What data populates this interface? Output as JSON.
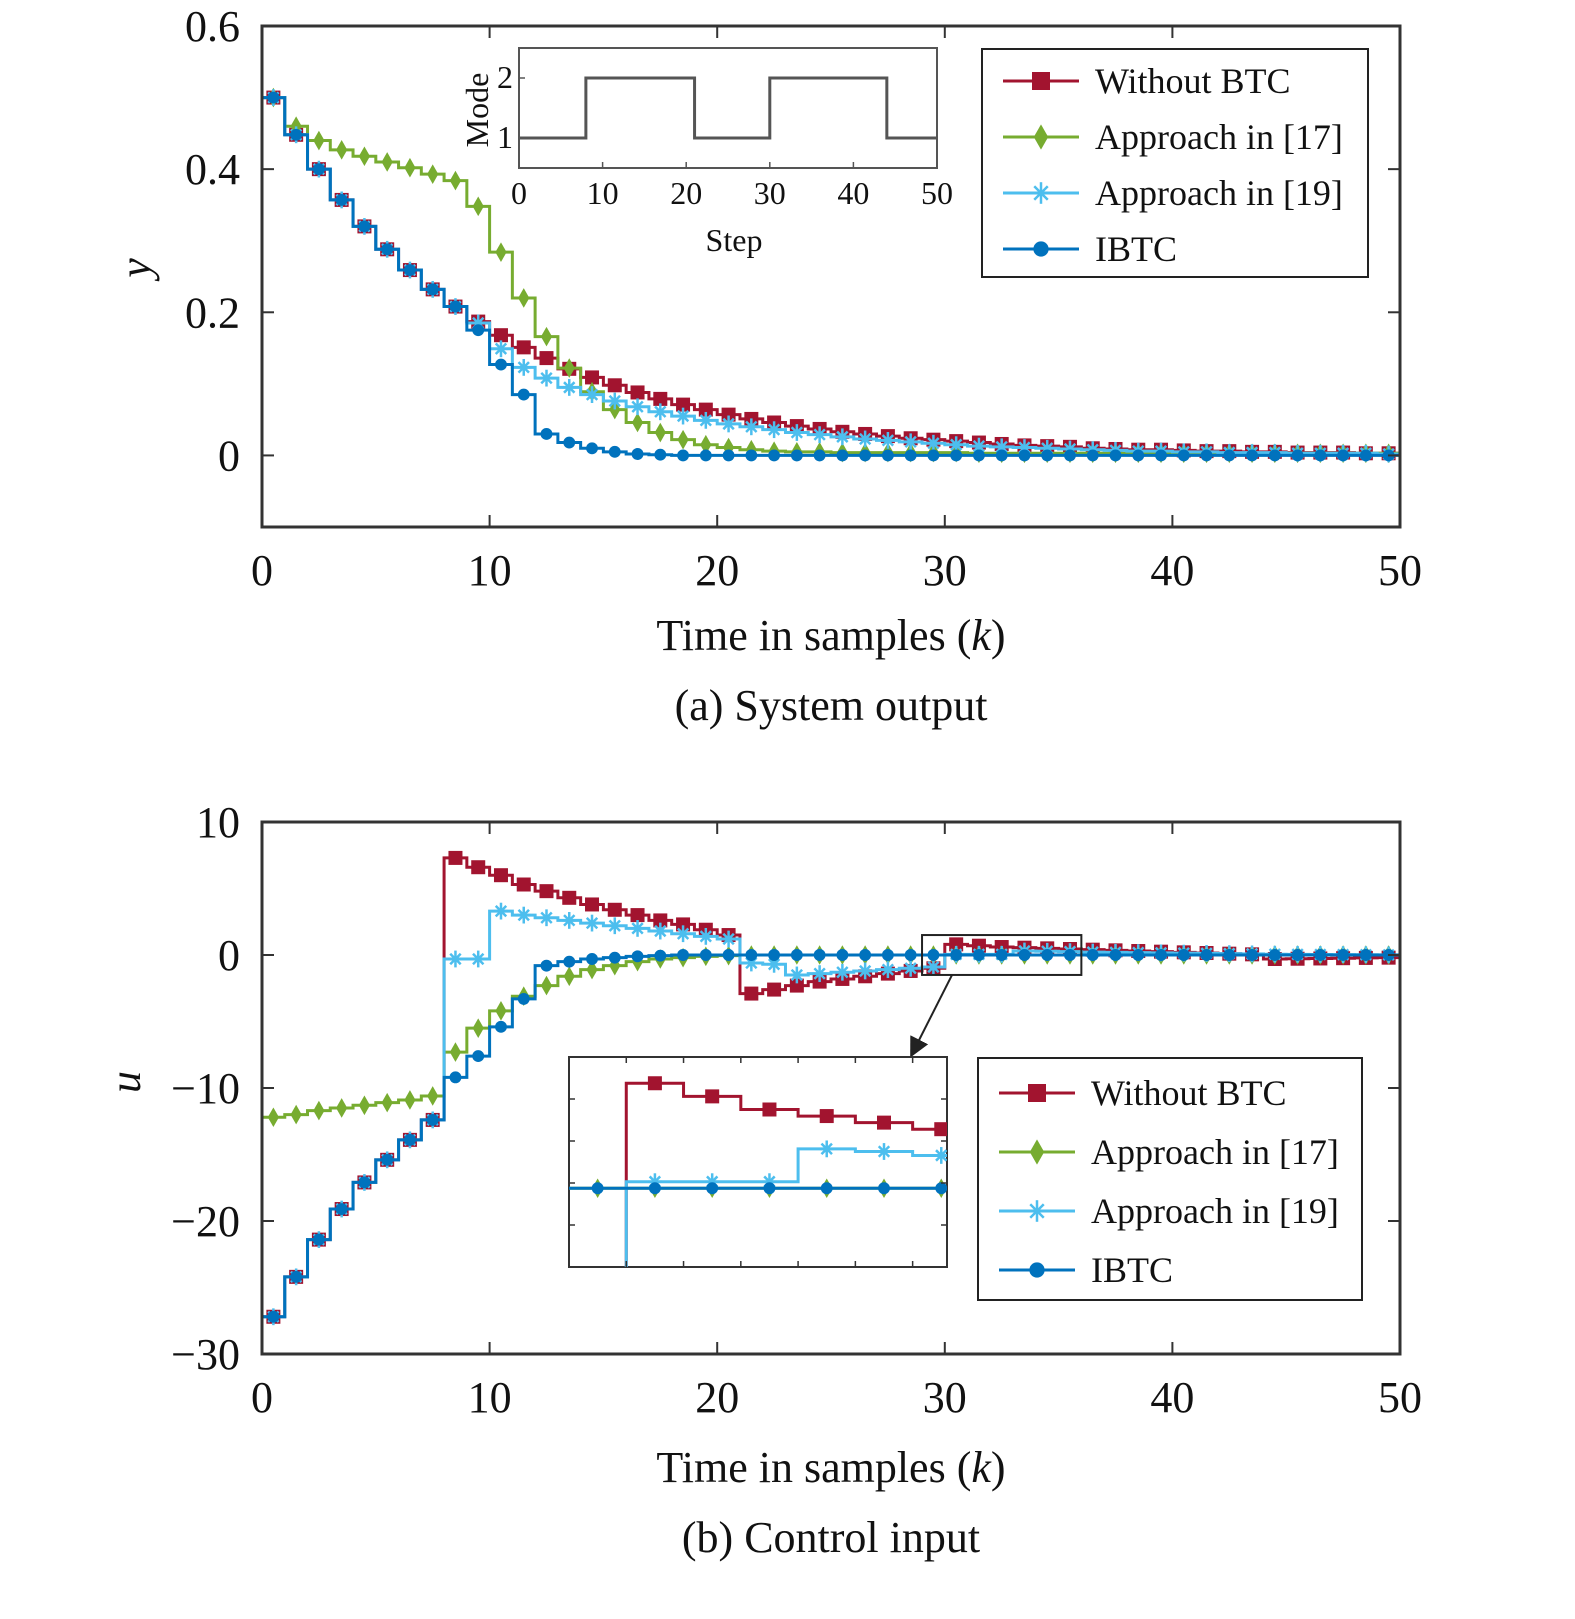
{
  "colors": {
    "without_btc": "#A2142F",
    "approach17": "#77AC30",
    "approach19": "#4DBEEE",
    "ibtc": "#0072BD",
    "axis": "#333333",
    "mode": "#555555"
  },
  "chart_data": [
    {
      "type": "line",
      "id": "output",
      "caption": "(a) System output",
      "xlabel": "Time in samples (",
      "xlabel_var": "k",
      "xlabel_end": ")",
      "ylabel": "y",
      "xlim": [
        0,
        50
      ],
      "ylim": [
        -0.1,
        0.6
      ],
      "xticks": [
        0,
        10,
        20,
        30,
        40,
        50
      ],
      "yticks": [
        0,
        0.2,
        0.4,
        0.6
      ],
      "ytick_labels": [
        "0",
        "0.2",
        "0.4",
        "0.6"
      ],
      "grid": false,
      "legend_position": "top-right",
      "step": true,
      "series": [
        {
          "key": "without_btc",
          "name": "Without BTC",
          "marker": "square",
          "values": [
            0.5,
            0.448,
            0.4,
            0.357,
            0.32,
            0.288,
            0.259,
            0.232,
            0.208,
            0.187,
            0.168,
            0.151,
            0.136,
            0.121,
            0.109,
            0.098,
            0.088,
            0.079,
            0.071,
            0.064,
            0.057,
            0.051,
            0.046,
            0.041,
            0.037,
            0.033,
            0.03,
            0.027,
            0.024,
            0.022,
            0.02,
            0.018,
            0.016,
            0.014,
            0.013,
            0.012,
            0.01,
            0.009,
            0.008,
            0.008,
            0.007,
            0.006,
            0.006,
            0.005,
            0.005,
            0.004,
            0.004,
            0.004,
            0.003,
            0.003
          ]
        },
        {
          "key": "approach17",
          "name": "Approach in [17]",
          "marker": "diamond",
          "values": [
            0.5,
            0.46,
            0.44,
            0.427,
            0.418,
            0.41,
            0.402,
            0.393,
            0.384,
            0.348,
            0.284,
            0.22,
            0.166,
            0.122,
            0.089,
            0.064,
            0.046,
            0.032,
            0.022,
            0.015,
            0.011,
            0.008,
            0.006,
            0.005,
            0.005,
            0.004,
            0.004,
            0.004,
            0.004,
            0.004,
            0.004,
            0.003,
            0.003,
            0.003,
            0.003,
            0.003,
            0.003,
            0.003,
            0.003,
            0.003,
            0.003,
            0.003,
            0.003,
            0.003,
            0.003,
            0.003,
            0.003,
            0.003,
            0.003,
            0.003
          ]
        },
        {
          "key": "approach19",
          "name": "Approach in [19]",
          "marker": "asterisk",
          "values": [
            0.5,
            0.448,
            0.4,
            0.357,
            0.32,
            0.288,
            0.259,
            0.232,
            0.208,
            0.185,
            0.149,
            0.123,
            0.108,
            0.095,
            0.085,
            0.076,
            0.068,
            0.061,
            0.055,
            0.049,
            0.044,
            0.04,
            0.036,
            0.032,
            0.029,
            0.026,
            0.023,
            0.021,
            0.019,
            0.017,
            0.015,
            0.013,
            0.012,
            0.011,
            0.01,
            0.009,
            0.008,
            0.007,
            0.006,
            0.006,
            0.005,
            0.005,
            0.004,
            0.004,
            0.004,
            0.003,
            0.003,
            0.003,
            0.003,
            0.002
          ]
        },
        {
          "key": "ibtc",
          "name": "IBTC",
          "marker": "circle",
          "values": [
            0.5,
            0.448,
            0.4,
            0.357,
            0.32,
            0.288,
            0.259,
            0.232,
            0.208,
            0.175,
            0.127,
            0.085,
            0.03,
            0.018,
            0.01,
            0.005,
            0.002,
            0.001,
            0,
            0,
            0,
            0,
            0,
            0,
            0,
            0,
            0,
            0,
            0,
            0,
            0,
            0,
            0,
            0,
            0,
            0,
            0,
            0,
            0,
            0,
            0,
            0,
            0,
            0,
            0,
            0,
            0,
            0,
            0,
            0
          ]
        }
      ],
      "inset": {
        "xlabel": "Step",
        "ylabel": "Mode",
        "xlim": [
          0,
          50
        ],
        "ylim": [
          0.5,
          2.5
        ],
        "xticks": [
          0,
          10,
          20,
          30,
          40,
          50
        ],
        "yticks": [
          1,
          2
        ],
        "switch_points": [
          [
            0,
            1
          ],
          [
            8,
            2
          ],
          [
            21,
            1
          ],
          [
            30,
            2
          ],
          [
            44,
            1
          ],
          [
            50,
            1
          ]
        ]
      }
    },
    {
      "type": "line",
      "id": "control",
      "caption": "(b) Control input",
      "xlabel": "Time in samples (",
      "xlabel_var": "k",
      "xlabel_end": ")",
      "ylabel": "u",
      "xlim": [
        0,
        50
      ],
      "ylim": [
        -30,
        10
      ],
      "xticks": [
        0,
        10,
        20,
        30,
        40,
        50
      ],
      "yticks": [
        -30,
        -20,
        -10,
        0,
        10
      ],
      "ytick_labels": [
        "−30",
        "−20",
        "−10",
        "0",
        "10"
      ],
      "grid": false,
      "legend_position": "bottom-right",
      "step": true,
      "series": [
        {
          "key": "without_btc",
          "name": "Without BTC",
          "marker": "square",
          "values": [
            -27.2,
            -24.2,
            -21.4,
            -19.1,
            -17.1,
            -15.4,
            -13.9,
            -12.4,
            7.3,
            6.6,
            6.0,
            5.3,
            4.8,
            4.3,
            3.8,
            3.4,
            3.0,
            2.6,
            2.3,
            1.9,
            1.5,
            -2.9,
            -2.6,
            -2.3,
            -2.0,
            -1.8,
            -1.6,
            -1.4,
            -1.2,
            -1.0,
            0.8,
            0.7,
            0.6,
            0.55,
            0.5,
            0.45,
            0.4,
            0.35,
            0.3,
            0.25,
            0.2,
            0.15,
            0.1,
            0.05,
            -0.3,
            -0.28,
            -0.26,
            -0.24,
            -0.22,
            -0.2
          ]
        },
        {
          "key": "approach17",
          "name": "Approach in [17]",
          "marker": "diamond",
          "values": [
            -12.2,
            -12.0,
            -11.7,
            -11.5,
            -11.3,
            -11.1,
            -10.9,
            -10.6,
            -7.3,
            -5.5,
            -4.2,
            -3.1,
            -2.3,
            -1.6,
            -1.1,
            -0.8,
            -0.5,
            -0.3,
            -0.2,
            -0.1,
            -0.05,
            0,
            0,
            0,
            0,
            0,
            0,
            0,
            0,
            0,
            0,
            0,
            0,
            0,
            0,
            0,
            0,
            0,
            0,
            0,
            0,
            0,
            0,
            0,
            0,
            0,
            0,
            0,
            0,
            0
          ]
        },
        {
          "key": "approach19",
          "name": "Approach in [19]",
          "marker": "asterisk",
          "values": [
            -27.2,
            -24.2,
            -21.4,
            -19.1,
            -17.1,
            -15.4,
            -13.9,
            -12.4,
            -0.3,
            -0.3,
            3.3,
            3.0,
            2.8,
            2.6,
            2.4,
            2.2,
            2.0,
            1.8,
            1.6,
            1.4,
            1.2,
            -0.6,
            -0.7,
            -1.5,
            -1.4,
            -1.3,
            -1.2,
            -1.1,
            -1.0,
            -0.9,
            0.05,
            0.05,
            0.05,
            0.3,
            0.28,
            0.25,
            0.22,
            0.2,
            0.18,
            0.16,
            0.14,
            0.12,
            0.1,
            0.08,
            0.06,
            0.05,
            0.04,
            0.03,
            0.02,
            0.01
          ]
        },
        {
          "key": "ibtc",
          "name": "IBTC",
          "marker": "circle",
          "values": [
            -27.2,
            -24.2,
            -21.4,
            -19.1,
            -17.1,
            -15.4,
            -13.9,
            -12.4,
            -9.2,
            -7.6,
            -5.4,
            -3.3,
            -0.8,
            -0.5,
            -0.3,
            -0.2,
            -0.1,
            -0.05,
            0,
            0,
            0,
            0,
            0,
            0,
            0,
            0,
            0,
            0,
            0,
            0,
            0,
            0,
            0,
            0,
            0,
            0,
            0,
            0,
            0,
            0,
            0,
            0,
            0,
            0,
            0,
            0,
            0,
            0,
            0,
            0
          ]
        }
      ],
      "zoom_inset": {
        "source_xrange": [
          29,
          36
        ],
        "source_yrange": [
          -1.5,
          1.5
        ],
        "view_xrange": [
          29,
          35.6
        ],
        "view_yrange": [
          -0.6,
          1.0
        ]
      }
    }
  ]
}
